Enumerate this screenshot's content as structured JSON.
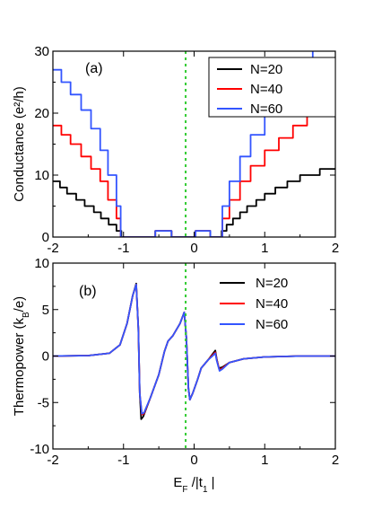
{
  "chart_data": [
    {
      "id": "a",
      "type": "line",
      "panel_label": "(a)",
      "ylabel": "Conductance (e²/h)",
      "xlim": [
        -2,
        2
      ],
      "ylim": [
        0,
        30
      ],
      "xticks": [
        -2,
        -1,
        0,
        1,
        2
      ],
      "xtick_labels": [
        "-2",
        "-1",
        "0",
        "1",
        "2"
      ],
      "yticks": [
        0,
        10,
        20,
        30
      ],
      "ytick_labels": [
        "0",
        "10",
        "20",
        "30"
      ],
      "step_curves": true,
      "legend": {
        "placement": "top-right",
        "framed": true
      },
      "reference_line": {
        "x": -0.12,
        "color": "#33cc33",
        "style": "dotted"
      },
      "series": [
        {
          "name": "N=20",
          "color": "#000000",
          "points": [
            [
              -2,
              9
            ],
            [
              -1.9,
              8
            ],
            [
              -1.8,
              7
            ],
            [
              -1.67,
              6
            ],
            [
              -1.55,
              5
            ],
            [
              -1.42,
              4
            ],
            [
              -1.32,
              3
            ],
            [
              -1.21,
              2
            ],
            [
              -1.1,
              1
            ],
            [
              -1.03,
              0
            ],
            [
              -0.56,
              0
            ],
            [
              -0.55,
              1
            ],
            [
              -0.33,
              1
            ],
            [
              -0.32,
              0
            ],
            [
              0.01,
              0
            ],
            [
              0.02,
              1
            ],
            [
              0.22,
              1
            ],
            [
              0.23,
              0
            ],
            [
              0.34,
              0
            ],
            [
              0.39,
              1
            ],
            [
              0.46,
              2
            ],
            [
              0.55,
              3
            ],
            [
              0.65,
              4
            ],
            [
              0.75,
              5
            ],
            [
              0.88,
              6
            ],
            [
              1.0,
              7
            ],
            [
              1.15,
              8
            ],
            [
              1.32,
              9
            ],
            [
              1.5,
              10
            ],
            [
              1.78,
              11
            ],
            [
              2,
              11
            ]
          ]
        },
        {
          "name": "N=40",
          "color": "#ff0000",
          "points": [
            [
              -2,
              18
            ],
            [
              -1.88,
              16.5
            ],
            [
              -1.75,
              15
            ],
            [
              -1.6,
              13
            ],
            [
              -1.46,
              11
            ],
            [
              -1.33,
              9
            ],
            [
              -1.22,
              6
            ],
            [
              -1.1,
              3
            ],
            [
              -1.04,
              0
            ],
            [
              -0.56,
              0
            ],
            [
              -0.55,
              1
            ],
            [
              -0.33,
              1
            ],
            [
              -0.32,
              0
            ],
            [
              0.01,
              0
            ],
            [
              0.02,
              1
            ],
            [
              0.22,
              1
            ],
            [
              0.23,
              0
            ],
            [
              0.34,
              0
            ],
            [
              0.4,
              3
            ],
            [
              0.5,
              6
            ],
            [
              0.65,
              9
            ],
            [
              0.8,
              11.5
            ],
            [
              1.0,
              14
            ],
            [
              1.2,
              16
            ],
            [
              1.4,
              18
            ],
            [
              1.6,
              19.5
            ],
            [
              1.8,
              21.5
            ],
            [
              2,
              23
            ]
          ]
        },
        {
          "name": "N=60",
          "color": "#3355ff",
          "points": [
            [
              -2,
              27
            ],
            [
              -1.88,
              25
            ],
            [
              -1.75,
              23
            ],
            [
              -1.6,
              20.5
            ],
            [
              -1.46,
              17.5
            ],
            [
              -1.33,
              14
            ],
            [
              -1.22,
              10
            ],
            [
              -1.1,
              5
            ],
            [
              -1.04,
              0
            ],
            [
              -0.56,
              0
            ],
            [
              -0.55,
              1
            ],
            [
              -0.33,
              1
            ],
            [
              -0.32,
              0
            ],
            [
              0.01,
              0
            ],
            [
              0.02,
              1
            ],
            [
              0.22,
              1
            ],
            [
              0.23,
              0
            ],
            [
              0.34,
              0
            ],
            [
              0.4,
              5
            ],
            [
              0.5,
              9
            ],
            [
              0.65,
              13
            ],
            [
              0.8,
              16.5
            ],
            [
              1.0,
              20
            ],
            [
              1.2,
              23
            ],
            [
              1.4,
              26
            ],
            [
              1.55,
              28.5
            ],
            [
              1.68,
              30
            ]
          ]
        }
      ]
    },
    {
      "id": "b",
      "type": "line",
      "panel_label": "(b)",
      "ylabel": "Thermopower (k_B/e)",
      "xlabel": "E_F /|t_1 |",
      "xlim": [
        -2,
        2
      ],
      "ylim": [
        -10,
        10
      ],
      "xticks": [
        -2,
        -1,
        0,
        1,
        2
      ],
      "xtick_labels": [
        "-2",
        "-1",
        "0",
        "1",
        "2"
      ],
      "yticks": [
        -10,
        -5,
        0,
        5,
        10
      ],
      "ytick_labels": [
        "-10",
        "-5",
        "0",
        "5",
        "10"
      ],
      "step_curves": false,
      "legend": {
        "placement": "top-right",
        "framed": false
      },
      "reference_line": {
        "x": -0.12,
        "color": "#33cc33",
        "style": "dotted"
      },
      "series": [
        {
          "name": "N=20",
          "color": "#000000",
          "points": [
            [
              -2,
              0
            ],
            [
              -1.5,
              0.05
            ],
            [
              -1.2,
              0.3
            ],
            [
              -1.05,
              1.2
            ],
            [
              -0.95,
              3.5
            ],
            [
              -0.87,
              6.5
            ],
            [
              -0.82,
              7.8
            ],
            [
              -0.79,
              3
            ],
            [
              -0.77,
              -4
            ],
            [
              -0.75,
              -6.8
            ],
            [
              -0.72,
              -6.5
            ],
            [
              -0.62,
              -4.5
            ],
            [
              -0.5,
              -2
            ],
            [
              -0.42,
              0.5
            ],
            [
              -0.37,
              1.6
            ],
            [
              -0.3,
              2.2
            ],
            [
              -0.2,
              3.5
            ],
            [
              -0.14,
              4.7
            ],
            [
              -0.11,
              2
            ],
            [
              -0.08,
              -3.5
            ],
            [
              -0.06,
              -4.7
            ],
            [
              -0.02,
              -4
            ],
            [
              0.05,
              -2.5
            ],
            [
              0.1,
              -1.3
            ],
            [
              0.2,
              -0.4
            ],
            [
              0.26,
              0.2
            ],
            [
              0.3,
              0.6
            ],
            [
              0.32,
              -0.3
            ],
            [
              0.35,
              -1.3
            ],
            [
              0.4,
              -1.2
            ],
            [
              0.5,
              -0.7
            ],
            [
              0.7,
              -0.3
            ],
            [
              1.0,
              -0.1
            ],
            [
              1.5,
              0
            ],
            [
              2,
              0
            ]
          ]
        },
        {
          "name": "N=40",
          "color": "#ff0000",
          "points": [
            [
              -2,
              0
            ],
            [
              -1.5,
              0.05
            ],
            [
              -1.2,
              0.3
            ],
            [
              -1.05,
              1.2
            ],
            [
              -0.95,
              3.5
            ],
            [
              -0.87,
              6.5
            ],
            [
              -0.82,
              7.7
            ],
            [
              -0.79,
              3
            ],
            [
              -0.77,
              -4
            ],
            [
              -0.74,
              -6.3
            ],
            [
              -0.71,
              -6.2
            ],
            [
              -0.62,
              -4.5
            ],
            [
              -0.5,
              -2
            ],
            [
              -0.42,
              0.5
            ],
            [
              -0.37,
              1.6
            ],
            [
              -0.3,
              2.2
            ],
            [
              -0.2,
              3.5
            ],
            [
              -0.14,
              4.7
            ],
            [
              -0.11,
              2
            ],
            [
              -0.08,
              -3.5
            ],
            [
              -0.06,
              -4.7
            ],
            [
              -0.02,
              -4
            ],
            [
              0.05,
              -2.5
            ],
            [
              0.1,
              -1.3
            ],
            [
              0.2,
              -0.4
            ],
            [
              0.26,
              0.1
            ],
            [
              0.3,
              0.4
            ],
            [
              0.32,
              -0.4
            ],
            [
              0.36,
              -1.5
            ],
            [
              0.4,
              -1.3
            ],
            [
              0.5,
              -0.7
            ],
            [
              0.7,
              -0.3
            ],
            [
              1.0,
              -0.1
            ],
            [
              1.5,
              0
            ],
            [
              2,
              0
            ]
          ]
        },
        {
          "name": "N=60",
          "color": "#3355ff",
          "points": [
            [
              -2,
              0
            ],
            [
              -1.5,
              0.05
            ],
            [
              -1.2,
              0.3
            ],
            [
              -1.05,
              1.2
            ],
            [
              -0.95,
              3.5
            ],
            [
              -0.87,
              6.5
            ],
            [
              -0.82,
              7.7
            ],
            [
              -0.79,
              3
            ],
            [
              -0.77,
              -4
            ],
            [
              -0.74,
              -6.2
            ],
            [
              -0.71,
              -6.1
            ],
            [
              -0.62,
              -4.5
            ],
            [
              -0.5,
              -2
            ],
            [
              -0.42,
              0.5
            ],
            [
              -0.37,
              1.6
            ],
            [
              -0.3,
              2.2
            ],
            [
              -0.2,
              3.5
            ],
            [
              -0.14,
              4.7
            ],
            [
              -0.11,
              2
            ],
            [
              -0.08,
              -3.5
            ],
            [
              -0.06,
              -4.7
            ],
            [
              -0.02,
              -4
            ],
            [
              0.05,
              -2.5
            ],
            [
              0.1,
              -1.3
            ],
            [
              0.2,
              -0.4
            ],
            [
              0.26,
              0.0
            ],
            [
              0.3,
              0.3
            ],
            [
              0.32,
              -0.5
            ],
            [
              0.36,
              -1.6
            ],
            [
              0.4,
              -1.4
            ],
            [
              0.5,
              -0.7
            ],
            [
              0.7,
              -0.3
            ],
            [
              1.0,
              -0.1
            ],
            [
              1.5,
              0
            ],
            [
              2,
              0
            ]
          ]
        }
      ]
    }
  ]
}
